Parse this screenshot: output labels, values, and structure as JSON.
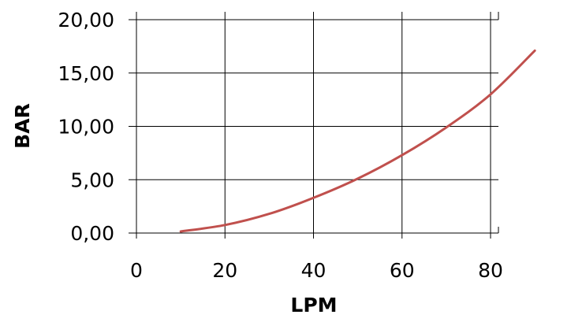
{
  "chart_data": {
    "type": "line",
    "title": "",
    "xlabel": "LPM",
    "ylabel": "BAR",
    "xlim": [
      0,
      80
    ],
    "ylim": [
      0,
      20
    ],
    "x_ticks": [
      0,
      20,
      40,
      60,
      80
    ],
    "x_tick_labels": [
      "0",
      "20",
      "40",
      "60",
      "80"
    ],
    "y_ticks": [
      0,
      5,
      10,
      15,
      20
    ],
    "y_tick_labels": [
      "0,00",
      "5,00",
      "10,00",
      "15,00",
      "20,00"
    ],
    "grid": true,
    "legend": "none",
    "colors": {
      "series": "#c0504d",
      "grid": "#000000"
    },
    "series": [
      {
        "x": [
          10,
          20,
          30,
          40,
          50,
          60,
          70,
          80,
          90
        ],
        "y": [
          0.15,
          0.75,
          1.8,
          3.3,
          5.1,
          7.3,
          9.9,
          13.0,
          17.1
        ]
      }
    ]
  }
}
